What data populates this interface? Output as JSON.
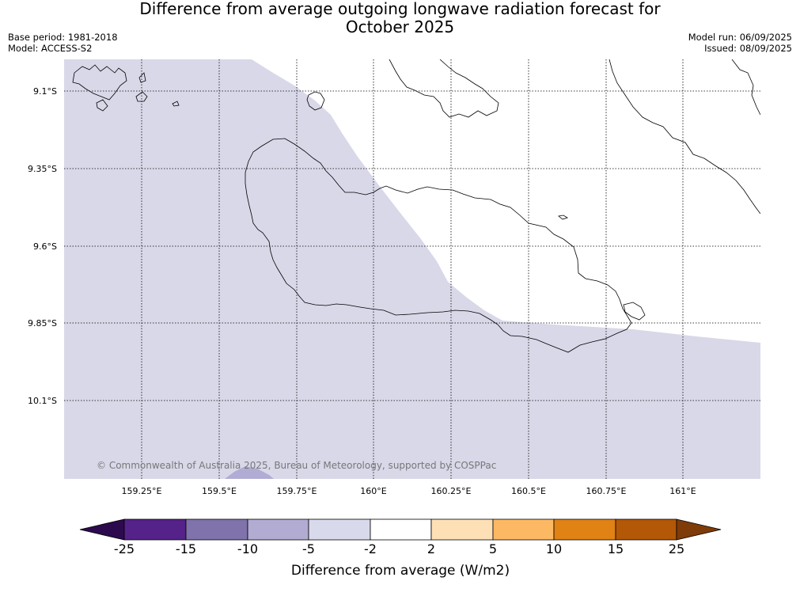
{
  "title": {
    "line1": "Difference from average outgoing longwave radiation forecast for",
    "line2": "October 2025"
  },
  "meta": {
    "base_period": "Base period: 1981-2018",
    "model": "Model: ACCESS-S2",
    "model_run": "Model run: 06/09/2025",
    "issued": "Issued: 08/09/2025"
  },
  "credit": "© Commonwealth of Australia 2025, Bureau of Meteorology, supported by COSPPac",
  "map": {
    "lat_labels": [
      "9.1°S",
      "9.35°S",
      "9.6°S",
      "9.85°S",
      "10.1°S"
    ],
    "lon_labels": [
      "159.25°E",
      "159.5°E",
      "159.75°E",
      "160°E",
      "160.25°E",
      "160.5°E",
      "160.75°E",
      "161°E"
    ],
    "colors": {
      "neg_5_to_neg_2": "#d8d8e9",
      "neg_10_to_neg_5": "#b1acd3",
      "land_outline": "#000000",
      "gridline": "#000000"
    }
  },
  "colorbar": {
    "title": "Difference from average (W/m2)",
    "ticks": [
      "-25",
      "-15",
      "-10",
      "-5",
      "-2",
      "2",
      "5",
      "10",
      "15",
      "25"
    ],
    "colors": {
      "below_min": "#2d0a4e",
      "bin_neg25_neg15": "#542288",
      "bin_neg15_neg10": "#8073ac",
      "bin_neg10_neg5": "#b2abd2",
      "bin_neg5_neg2": "#d8daeb",
      "bin_neg2_2": "#ffffff",
      "bin_2_5": "#fee0b6",
      "bin_5_10": "#fdb863",
      "bin_10_15": "#e08214",
      "bin_15_25": "#b35806",
      "above_max": "#7f3b08"
    }
  }
}
